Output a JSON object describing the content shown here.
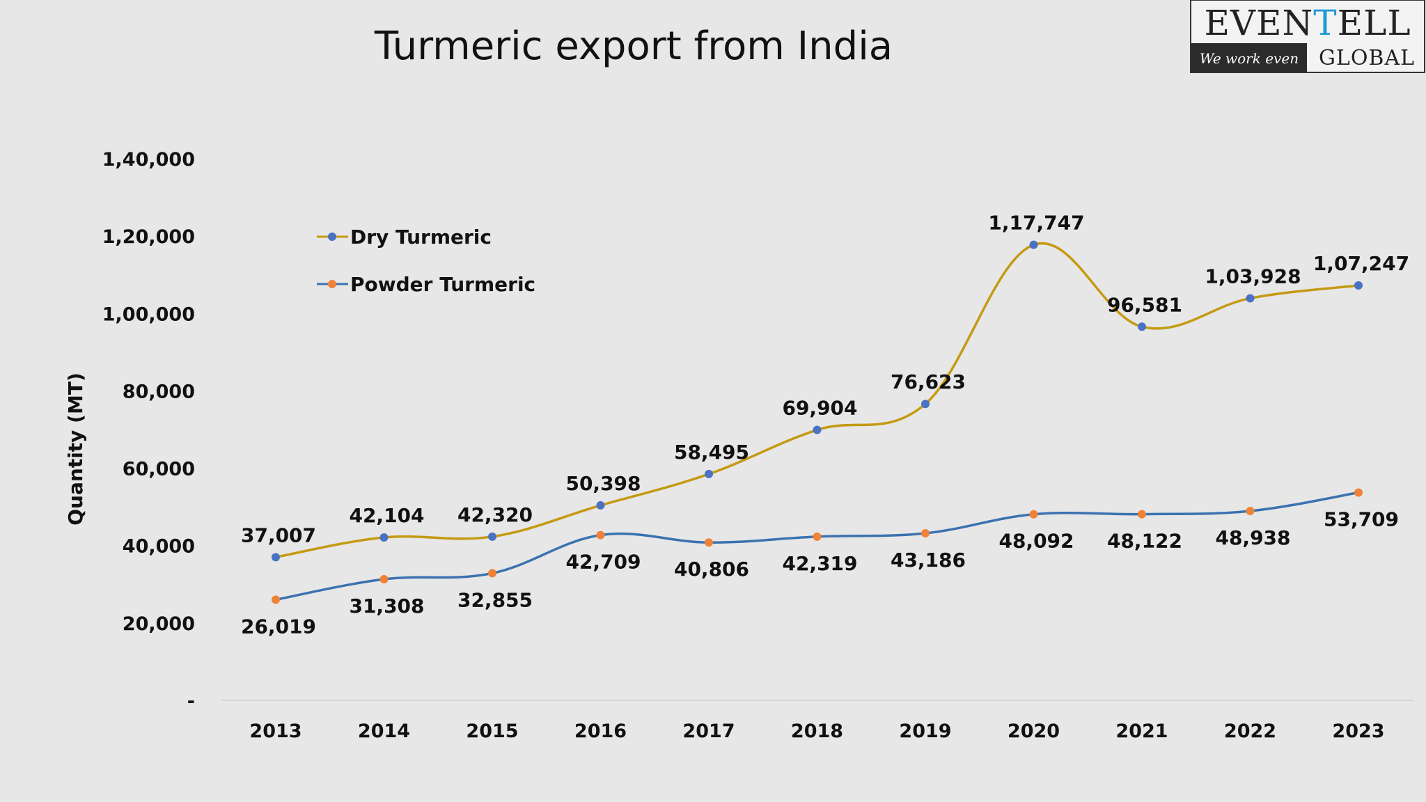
{
  "logo": {
    "word_pre": "EVEN",
    "word_accent": "T",
    "word_post": "ELL",
    "tagline": "We work even",
    "sub": "GLOBAL"
  },
  "colors": {
    "background": "#e7e7e7",
    "dry_line": "#c49a12",
    "powder_line": "#3b72b0",
    "dry_marker": "#4a72c4",
    "powder_marker": "#ef8236",
    "axis_line": "#d4d4d4",
    "logo_accent": "#1f9ad6"
  },
  "chart_data": {
    "type": "line",
    "title": "Turmeric export from India",
    "ylabel": "Quantity (MT)",
    "xlabel": "",
    "ylim": [
      0,
      140000
    ],
    "y_ticks": [
      {
        "value": 0,
        "label": "-"
      },
      {
        "value": 20000,
        "label": "20,000"
      },
      {
        "value": 40000,
        "label": "40,000"
      },
      {
        "value": 60000,
        "label": "60,000"
      },
      {
        "value": 80000,
        "label": "80,000"
      },
      {
        "value": 100000,
        "label": "1,00,000"
      },
      {
        "value": 120000,
        "label": "1,20,000"
      },
      {
        "value": 140000,
        "label": "1,40,000"
      }
    ],
    "categories": [
      "2013",
      "2014",
      "2015",
      "2016",
      "2017",
      "2018",
      "2019",
      "2020",
      "2021",
      "2022",
      "2023"
    ],
    "grid": false,
    "legend_position": "top-left",
    "smooth": true,
    "series": [
      {
        "name": "Dry Turmeric",
        "values": [
          37007,
          42104,
          42320,
          50398,
          58495,
          69904,
          76623,
          117747,
          96581,
          103928,
          107247
        ],
        "labels": [
          "37,007",
          "42,104",
          "42,320",
          "50,398",
          "58,495",
          "69,904",
          "76,623",
          "1,17,747",
          "96,581",
          "1,03,928",
          "1,07,247"
        ]
      },
      {
        "name": "Powder Turmeric",
        "values": [
          26019,
          31308,
          32855,
          42709,
          40806,
          42319,
          43186,
          48092,
          48122,
          48938,
          53709
        ],
        "labels": [
          "26,019",
          "31,308",
          "32,855",
          "42,709",
          "40,806",
          "42,319",
          "43,186",
          "48,092",
          "48,122",
          "48,938",
          "53,709"
        ]
      }
    ]
  }
}
